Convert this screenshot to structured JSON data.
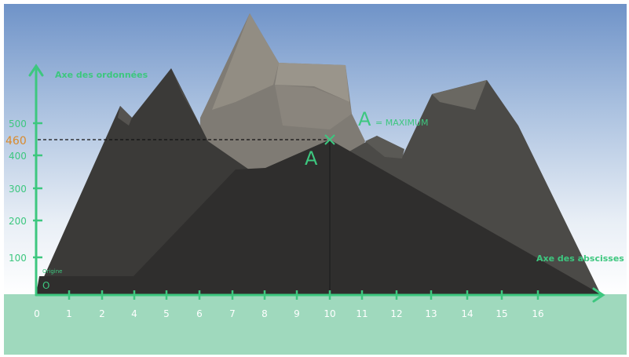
{
  "diagram": {
    "y_axis_label": "Axe des ordonnées",
    "x_axis_label": "Axe des abscisses",
    "origin_label": "Origine",
    "origin_marker": "O",
    "point_label": "A",
    "max_label": "= MAXIMUM",
    "max_value_label": "460",
    "x_ticks": [
      "0",
      "1",
      "2",
      "4",
      "5",
      "6",
      "7",
      "8",
      "9",
      "10",
      "11",
      "12",
      "13",
      "14",
      "15",
      "16"
    ],
    "y_ticks": [
      "100",
      "200",
      "300",
      "400",
      "500"
    ],
    "colors": {
      "axis": "#3dc77f",
      "highlight": "#d98a2c",
      "ground": "#9fd9bd",
      "sky_top": "#6f93c8",
      "sky_bottom": "#ffffff"
    }
  }
}
